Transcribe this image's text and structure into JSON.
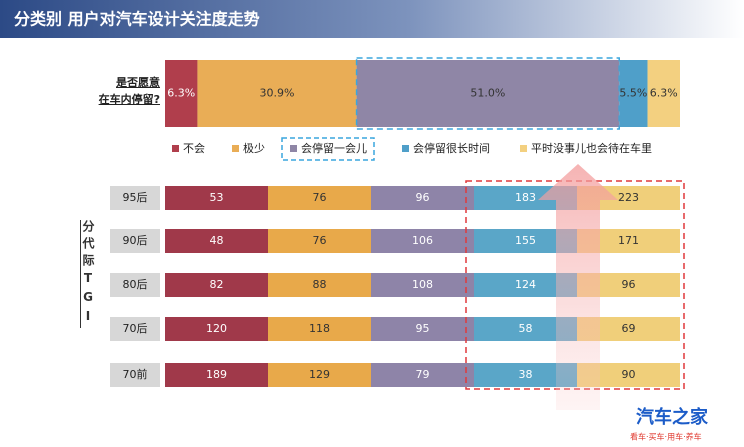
{
  "header": {
    "title": "分类别 用户对汽车设计关注度走势"
  },
  "chart_data": {
    "type": "bar",
    "orientation": "horizontal",
    "stacked": true,
    "categories": [
      "是否愿意\n在车内停留?"
    ],
    "xlim": [
      0,
      100
    ],
    "series": [
      {
        "name": "不会",
        "color": "#b03e4c",
        "values": [
          6.3
        ],
        "value_labels": [
          "6.3%"
        ]
      },
      {
        "name": "极少",
        "color": "#e9ad56",
        "values": [
          30.9
        ],
        "value_labels": [
          "30.9%"
        ]
      },
      {
        "name": "会停留一会儿",
        "color": "#8f86a6",
        "values": [
          51.0
        ],
        "value_labels": [
          "51.0%"
        ]
      },
      {
        "name": "会停留很长时间",
        "color": "#4f9fc9",
        "values": [
          5.5
        ],
        "value_labels": [
          "5.5%"
        ]
      },
      {
        "name": "平时没事儿也会待在车里",
        "color": "#f3d080",
        "values": [
          6.3
        ],
        "value_labels": [
          "6.3%"
        ]
      }
    ]
  },
  "tgi": {
    "label": "分代际TGI",
    "rows": [
      "95后",
      "90后",
      "80后",
      "70后",
      "70前"
    ],
    "values": [
      [
        53,
        76,
        96,
        183,
        223
      ],
      [
        48,
        76,
        106,
        155,
        171
      ],
      [
        82,
        88,
        108,
        124,
        96
      ],
      [
        120,
        118,
        95,
        58,
        69
      ],
      [
        189,
        129,
        79,
        38,
        90
      ]
    ]
  },
  "watermark": {
    "brand": "汽车之家",
    "slogan": "看车·买车·用车·养车"
  }
}
